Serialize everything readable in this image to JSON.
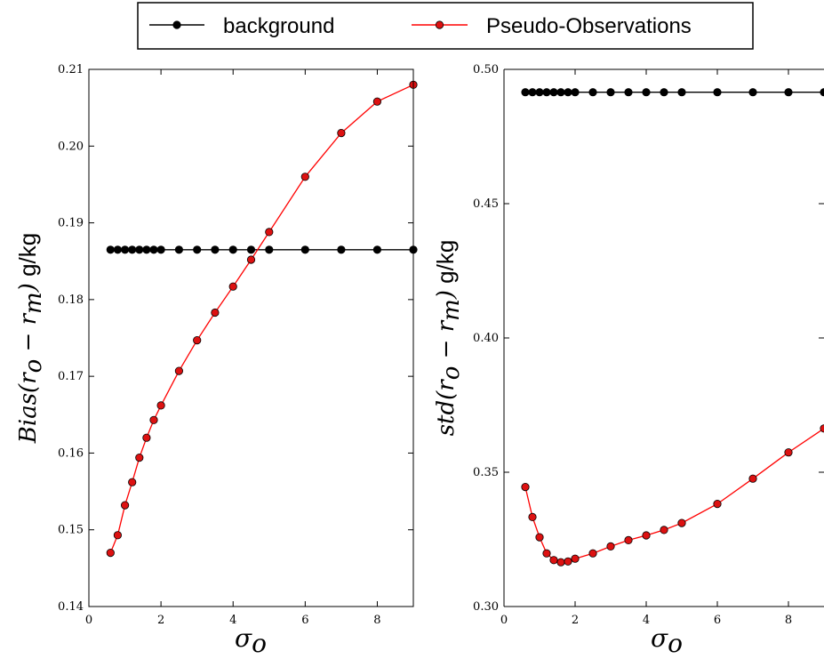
{
  "legend": {
    "entries": [
      {
        "label": "background",
        "line_color": "#000000",
        "marker_color": "#000000"
      },
      {
        "label": "Pseudo-Observations",
        "line_color": "#ff0000",
        "marker_color": "#dd1111"
      }
    ]
  },
  "chart_data": [
    {
      "type": "line",
      "xlabel": "σ_o",
      "ylabel": "Bias(r_o − r_m) g/kg",
      "xlim": [
        0,
        9
      ],
      "ylim": [
        0.14,
        0.21
      ],
      "xticks": [
        0,
        2,
        4,
        6,
        8
      ],
      "xtick_labels": [
        "0",
        "2",
        "4",
        "6",
        "8"
      ],
      "yticks": [
        0.14,
        0.15,
        0.16,
        0.17,
        0.18,
        0.19,
        0.2,
        0.21
      ],
      "ytick_labels": [
        "0.14",
        "0.15",
        "0.16",
        "0.17",
        "0.18",
        "0.19",
        "0.20",
        "0.21"
      ],
      "grid": false,
      "x": [
        0.6,
        0.8,
        1.0,
        1.2,
        1.4,
        1.6,
        1.8,
        2.0,
        2.5,
        3.0,
        3.5,
        4.0,
        4.5,
        5.0,
        6.0,
        7.0,
        8.0,
        9.0
      ],
      "series": [
        {
          "name": "background",
          "color": "#000000",
          "values": [
            0.1865,
            0.1865,
            0.1865,
            0.1865,
            0.1865,
            0.1865,
            0.1865,
            0.1865,
            0.1865,
            0.1865,
            0.1865,
            0.1865,
            0.1865,
            0.1865,
            0.1865,
            0.1865,
            0.1865,
            0.1865
          ]
        },
        {
          "name": "Pseudo-Observations",
          "color": "#ff0000",
          "values": [
            0.147,
            0.1493,
            0.1532,
            0.1562,
            0.1594,
            0.162,
            0.1643,
            0.1662,
            0.1707,
            0.1747,
            0.1783,
            0.1817,
            0.1852,
            0.1888,
            0.196,
            0.2017,
            0.2058,
            0.208
          ]
        }
      ]
    },
    {
      "type": "line",
      "xlabel": "σ_o",
      "ylabel": "std(r_o − r_m) g/kg",
      "xlim": [
        0,
        9
      ],
      "ylim": [
        0.3,
        0.5
      ],
      "xticks": [
        0,
        2,
        4,
        6,
        8
      ],
      "xtick_labels": [
        "0",
        "2",
        "4",
        "6",
        "8"
      ],
      "yticks": [
        0.3,
        0.35,
        0.4,
        0.45,
        0.5
      ],
      "ytick_labels": [
        "0.30",
        "0.35",
        "0.40",
        "0.45",
        "0.50"
      ],
      "grid": false,
      "x": [
        0.6,
        0.8,
        1.0,
        1.2,
        1.4,
        1.6,
        1.8,
        2.0,
        2.5,
        3.0,
        3.5,
        4.0,
        4.5,
        5.0,
        6.0,
        7.0,
        8.0,
        9.0
      ],
      "series": [
        {
          "name": "background",
          "color": "#000000",
          "values": [
            0.4915,
            0.4915,
            0.4915,
            0.4915,
            0.4915,
            0.4915,
            0.4915,
            0.4915,
            0.4915,
            0.4915,
            0.4915,
            0.4915,
            0.4915,
            0.4915,
            0.4915,
            0.4915,
            0.4915,
            0.4915
          ]
        },
        {
          "name": "Pseudo-Observations",
          "color": "#ff0000",
          "values": [
            0.3445,
            0.3333,
            0.3258,
            0.3198,
            0.3173,
            0.3165,
            0.3168,
            0.3178,
            0.3198,
            0.3224,
            0.3247,
            0.3265,
            0.3285,
            0.3311,
            0.3382,
            0.3476,
            0.3574,
            0.3663
          ]
        }
      ]
    }
  ]
}
